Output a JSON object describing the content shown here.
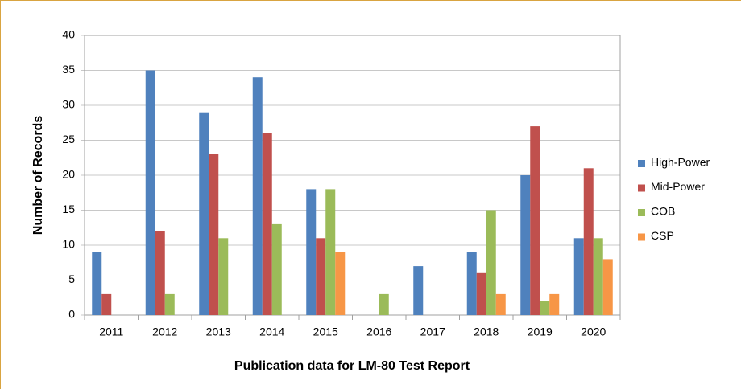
{
  "chart_data": {
    "type": "bar",
    "x_label": "Publication data for LM-80 Test Report",
    "y_label": "Number of Records",
    "categories": [
      "2011",
      "2012",
      "2013",
      "2014",
      "2015",
      "2016",
      "2017",
      "2018",
      "2019",
      "2020"
    ],
    "series": [
      {
        "name": "High-Power",
        "color": "#4f81bd",
        "values": [
          9,
          35,
          29,
          34,
          18,
          0,
          7,
          9,
          20,
          11
        ]
      },
      {
        "name": "Mid-Power",
        "color": "#c0504d",
        "values": [
          3,
          12,
          23,
          26,
          11,
          0,
          0,
          6,
          27,
          21
        ]
      },
      {
        "name": "COB",
        "color": "#9bbb59",
        "values": [
          0,
          3,
          11,
          13,
          18,
          3,
          0,
          15,
          2,
          11
        ]
      },
      {
        "name": "CSP",
        "color": "#f79646",
        "values": [
          0,
          0,
          0,
          0,
          9,
          0,
          0,
          3,
          3,
          8
        ]
      }
    ],
    "ylim": [
      0,
      40
    ],
    "yticks": [
      0,
      5,
      10,
      15,
      20,
      25,
      30,
      35,
      40
    ],
    "grid": true,
    "legend": "right"
  }
}
